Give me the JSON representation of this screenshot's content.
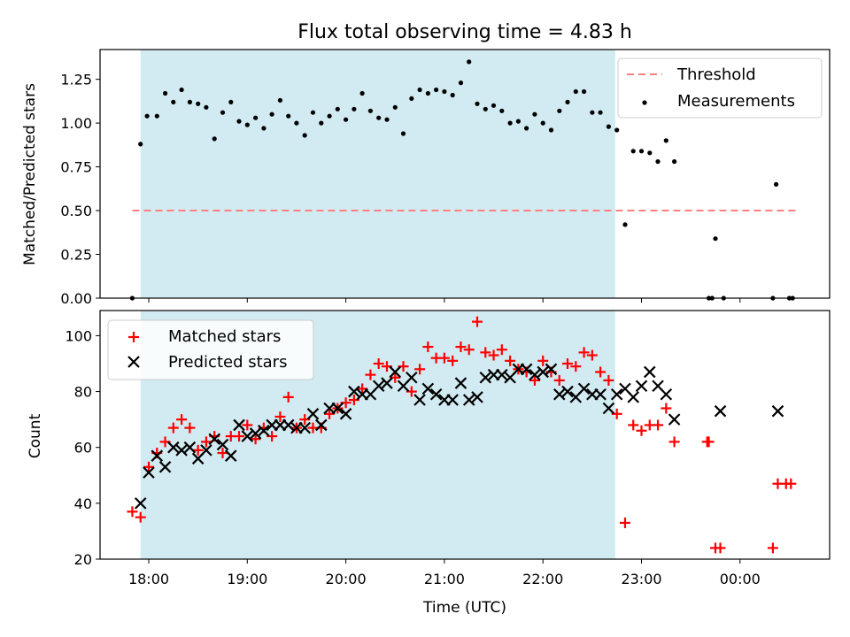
{
  "chart_data": [
    {
      "type": "scatter",
      "title": "Flux total observing time = 4.83 h",
      "xlabel": "",
      "ylabel": "Matched/Predicted stars",
      "ylim": [
        0,
        1.42
      ],
      "yticks": [
        "0.00",
        "0.25",
        "0.50",
        "0.75",
        "1.00",
        "1.25"
      ],
      "ytick_values": [
        0,
        0.25,
        0.5,
        0.75,
        1.0,
        1.25
      ],
      "legend_position": "top-right",
      "shaded_interval": {
        "x": [
          "17:55",
          "22:44"
        ],
        "color": "#add8e6"
      },
      "threshold": {
        "name": "Threshold",
        "value": 0.5,
        "x": [
          "17:50",
          "00:35"
        ],
        "color": "#ff7f7f",
        "style": "dashed"
      },
      "series": [
        {
          "name": "Measurements",
          "marker": "dot",
          "color": "#000000",
          "x": [
            "17:50",
            "17:55",
            "17:59",
            "18:05",
            "18:10",
            "18:15",
            "18:20",
            "18:25",
            "18:30",
            "18:35",
            "18:40",
            "18:45",
            "18:50",
            "18:55",
            "19:00",
            "19:05",
            "19:10",
            "19:15",
            "19:20",
            "19:25",
            "19:30",
            "19:35",
            "19:40",
            "19:45",
            "19:50",
            "19:55",
            "20:00",
            "20:05",
            "20:10",
            "20:15",
            "20:20",
            "20:25",
            "20:30",
            "20:35",
            "20:40",
            "20:45",
            "20:50",
            "20:55",
            "21:00",
            "21:05",
            "21:10",
            "21:15",
            "21:20",
            "21:25",
            "21:30",
            "21:35",
            "21:40",
            "21:45",
            "21:50",
            "21:55",
            "22:00",
            "22:05",
            "22:10",
            "22:15",
            "22:20",
            "22:25",
            "22:30",
            "22:35",
            "22:40",
            "22:45",
            "22:50",
            "22:55",
            "23:00",
            "23:05",
            "23:10",
            "23:15",
            "23:20",
            "23:41",
            "23:43",
            "23:45",
            "23:50",
            "00:20",
            "00:22",
            "00:30",
            "00:32"
          ],
          "y": [
            0.0,
            0.88,
            1.04,
            1.04,
            1.17,
            1.12,
            1.19,
            1.12,
            1.11,
            1.09,
            0.91,
            1.06,
            1.12,
            1.01,
            0.99,
            1.03,
            0.97,
            1.05,
            1.13,
            1.04,
            1.0,
            0.93,
            1.06,
            1.0,
            1.04,
            1.08,
            1.02,
            1.08,
            1.17,
            1.07,
            1.03,
            1.02,
            1.09,
            0.94,
            1.14,
            1.19,
            1.17,
            1.19,
            1.18,
            1.16,
            1.23,
            1.35,
            1.11,
            1.08,
            1.1,
            1.07,
            1.0,
            1.01,
            0.97,
            1.05,
            1.0,
            0.96,
            1.07,
            1.12,
            1.18,
            1.18,
            1.06,
            1.06,
            0.98,
            0.96,
            0.42,
            0.84,
            0.84,
            0.83,
            0.78,
            0.9,
            0.78,
            0.0,
            0.0,
            0.34,
            0.0,
            0.0,
            0.65,
            0.0,
            0.0
          ]
        }
      ]
    },
    {
      "type": "scatter",
      "title": "",
      "xlabel": "Time (UTC)",
      "ylabel": "Count",
      "ylim": [
        20,
        109
      ],
      "yticks": [
        "20",
        "40",
        "60",
        "80",
        "100"
      ],
      "ytick_values": [
        20,
        40,
        60,
        80,
        100
      ],
      "xticks": [
        "18:00",
        "19:00",
        "20:00",
        "21:00",
        "22:00",
        "23:00",
        "00:00"
      ],
      "legend_position": "top-left",
      "shaded_interval": {
        "x": [
          "17:55",
          "22:44"
        ],
        "color": "#add8e6"
      },
      "series": [
        {
          "name": "Matched stars",
          "marker": "plus",
          "color": "#ff0000",
          "x": [
            "17:50",
            "17:55",
            "18:00",
            "18:05",
            "18:10",
            "18:15",
            "18:20",
            "18:25",
            "18:30",
            "18:35",
            "18:40",
            "18:45",
            "18:50",
            "18:55",
            "19:00",
            "19:05",
            "19:10",
            "19:15",
            "19:20",
            "19:25",
            "19:30",
            "19:35",
            "19:40",
            "19:45",
            "19:50",
            "19:55",
            "20:00",
            "20:05",
            "20:10",
            "20:15",
            "20:20",
            "20:25",
            "20:30",
            "20:35",
            "20:40",
            "20:45",
            "20:50",
            "20:55",
            "21:00",
            "21:05",
            "21:10",
            "21:15",
            "21:20",
            "21:25",
            "21:30",
            "21:35",
            "21:40",
            "21:45",
            "21:50",
            "21:55",
            "22:00",
            "22:05",
            "22:10",
            "22:15",
            "22:20",
            "22:25",
            "22:30",
            "22:35",
            "22:40",
            "22:45",
            "22:50",
            "22:55",
            "23:00",
            "23:05",
            "23:10",
            "23:15",
            "23:20",
            "23:40",
            "23:41",
            "23:45",
            "23:48",
            "00:20",
            "00:23",
            "00:28",
            "00:31"
          ],
          "y": [
            37,
            35,
            53,
            58,
            62,
            67,
            70,
            67,
            59,
            62,
            64,
            58,
            64,
            64,
            68,
            63,
            67,
            64,
            71,
            78,
            67,
            70,
            67,
            67,
            72,
            74,
            76,
            77,
            81,
            86,
            90,
            89,
            85,
            89,
            80,
            88,
            96,
            92,
            92,
            91,
            96,
            95,
            105,
            94,
            93,
            95,
            91,
            88,
            87,
            84,
            91,
            87,
            84,
            90,
            89,
            94,
            93,
            87,
            84,
            72,
            33,
            68,
            66,
            68,
            68,
            74,
            62,
            62,
            62,
            24,
            24,
            24,
            47,
            47,
            47
          ]
        },
        {
          "name": "Predicted stars",
          "marker": "x",
          "color": "#000000",
          "x": [
            "17:55",
            "18:00",
            "18:05",
            "18:10",
            "18:15",
            "18:20",
            "18:25",
            "18:30",
            "18:35",
            "18:40",
            "18:45",
            "18:50",
            "18:55",
            "19:00",
            "19:05",
            "19:10",
            "19:15",
            "19:20",
            "19:25",
            "19:30",
            "19:35",
            "19:40",
            "19:45",
            "19:50",
            "19:55",
            "20:00",
            "20:05",
            "20:10",
            "20:15",
            "20:20",
            "20:25",
            "20:30",
            "20:35",
            "20:40",
            "20:45",
            "20:50",
            "20:55",
            "21:00",
            "21:05",
            "21:10",
            "21:15",
            "21:20",
            "21:25",
            "21:30",
            "21:35",
            "21:40",
            "21:45",
            "21:50",
            "21:55",
            "22:00",
            "22:05",
            "22:10",
            "22:15",
            "22:20",
            "22:25",
            "22:30",
            "22:35",
            "22:40",
            "22:45",
            "22:50",
            "22:55",
            "23:00",
            "23:05",
            "23:10",
            "23:15",
            "23:20",
            "23:48",
            "00:23"
          ],
          "y": [
            40,
            51,
            57,
            53,
            60,
            59,
            60,
            56,
            59,
            63,
            61,
            57,
            68,
            64,
            65,
            66,
            68,
            68,
            68,
            67,
            67,
            72,
            68,
            74,
            74,
            72,
            80,
            79,
            79,
            82,
            83,
            87,
            82,
            85,
            77,
            81,
            79,
            77,
            77,
            83,
            77,
            78,
            85,
            86,
            86,
            85,
            88,
            88,
            86,
            87,
            88,
            79,
            80,
            78,
            81,
            79,
            79,
            74,
            79,
            81,
            78,
            82,
            87,
            82,
            79,
            70,
            73,
            73
          ]
        }
      ]
    }
  ]
}
